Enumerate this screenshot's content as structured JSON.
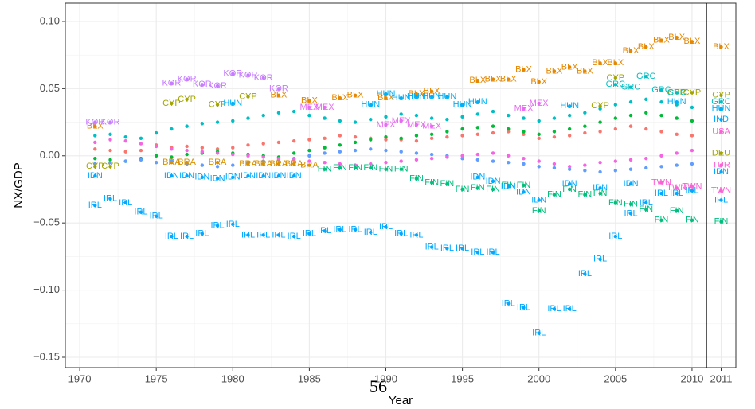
{
  "chart_data": [
    {
      "type": "scatter",
      "x_label": "Year",
      "y_label": "NX/GDP",
      "xlim": [
        1969.06,
        2010.94
      ],
      "xticks": [
        1970,
        1975,
        1980,
        1985,
        1990,
        1995,
        2000,
        2005,
        2010
      ],
      "ylim": [
        -0.1577,
        0.1136
      ],
      "yticks": [
        {
          "value": -0.15,
          "label": "−0.15"
        },
        {
          "value": -0.1,
          "label": "−0.10"
        },
        {
          "value": -0.05,
          "label": "−0.05"
        },
        {
          "value": 0,
          "label": "0.00"
        },
        {
          "value": 0.05,
          "label": "0.05"
        },
        {
          "value": 0.1,
          "label": "0.10"
        }
      ],
      "grid": true,
      "series": [
        {
          "color": "#f8766d",
          "x": [
            1971,
            1972,
            1973,
            1974,
            1975,
            1976,
            1977,
            1978,
            1979,
            1980,
            1981,
            1982,
            1983,
            1984,
            1985,
            1986,
            1987,
            1988,
            1989,
            1990,
            1991,
            1992,
            1993,
            1994,
            1995,
            1996,
            1997,
            1998,
            1999,
            2000,
            2001,
            2002,
            2003,
            2004,
            2005,
            2006,
            2007,
            2008,
            2009,
            2010
          ],
          "values": [
            0.005,
            0.004,
            0.003,
            0.004,
            0.008,
            0.006,
            0.007,
            0.006,
            0.005,
            0.006,
            0.008,
            0.009,
            0.01,
            0.011,
            0.012,
            0.013,
            0.015,
            0.014,
            0.013,
            0.012,
            0.012,
            0.011,
            0.013,
            0.014,
            0.015,
            0.016,
            0.017,
            0.018,
            0.016,
            0.013,
            0.014,
            0.015,
            0.017,
            0.018,
            0.02,
            0.022,
            0.02,
            0.018,
            0.016,
            0.015
          ]
        },
        {
          "color": "#00ba38",
          "x": [
            1971,
            1972,
            1973,
            1974,
            1975,
            1976,
            1977,
            1978,
            1979,
            1980,
            1981,
            1982,
            1983,
            1984,
            1985,
            1986,
            1987,
            1988,
            1989,
            1990,
            1991,
            1992,
            1993,
            1994,
            1995,
            1996,
            1997,
            1998,
            1999,
            2000,
            2001,
            2002,
            2003,
            2004,
            2005,
            2006,
            2007,
            2008,
            2009,
            2010
          ],
          "values": [
            -0.002,
            -0.003,
            -0.004,
            -0.002,
            0,
            -0.001,
            0.001,
            0.002,
            0.003,
            0.002,
            0.001,
            0,
            -0.001,
            0.002,
            0.004,
            0.006,
            0.008,
            0.01,
            0.012,
            0.014,
            0.013,
            0.015,
            0.016,
            0.018,
            0.02,
            0.021,
            0.022,
            0.02,
            0.018,
            0.016,
            0.018,
            0.02,
            0.022,
            0.025,
            0.028,
            0.03,
            0.032,
            0.03,
            0.028,
            0.026
          ]
        },
        {
          "color": "#619cff",
          "x": [
            1971,
            1972,
            1973,
            1974,
            1975,
            1976,
            1977,
            1978,
            1979,
            1980,
            1981,
            1982,
            1983,
            1984,
            1985,
            1986,
            1987,
            1988,
            1989,
            1990,
            1991,
            1992,
            1993,
            1994,
            1995,
            1996,
            1997,
            1998,
            1999,
            2000,
            2001,
            2002,
            2003,
            2004,
            2005,
            2006,
            2007,
            2008,
            2009,
            2010
          ],
          "values": [
            -0.006,
            -0.005,
            -0.004,
            -0.003,
            -0.005,
            -0.004,
            -0.006,
            -0.007,
            -0.008,
            -0.007,
            -0.005,
            -0.004,
            -0.003,
            -0.002,
            0,
            0.002,
            0.003,
            0.004,
            0.005,
            0.004,
            0.003,
            0.002,
            0.001,
            0,
            -0.002,
            -0.003,
            -0.004,
            -0.005,
            -0.006,
            -0.008,
            -0.009,
            -0.01,
            -0.011,
            -0.012,
            -0.011,
            -0.01,
            -0.009,
            -0.008,
            -0.007,
            -0.006
          ]
        },
        {
          "color": "#f564e3",
          "x": [
            1971,
            1972,
            1973,
            1974,
            1975,
            1976,
            1977,
            1978,
            1979,
            1980,
            1981,
            1982,
            1983,
            1984,
            1985,
            1986,
            1987,
            1988,
            1989,
            1990,
            1991,
            1992,
            1993,
            1994,
            1995,
            1996,
            1997,
            1998,
            1999,
            2000,
            2001,
            2002,
            2003,
            2004,
            2005,
            2006,
            2007,
            2008,
            2009,
            2010
          ],
          "values": [
            0.01,
            0.012,
            0.011,
            0.009,
            0.007,
            0.005,
            0.004,
            0.003,
            0.002,
            0.001,
            0,
            -0.001,
            -0.002,
            -0.003,
            -0.004,
            -0.005,
            -0.006,
            -0.007,
            -0.006,
            -0.005,
            -0.004,
            -0.003,
            -0.002,
            -0.001,
            0,
            0.001,
            0.002,
            0,
            -0.002,
            -0.004,
            -0.006,
            -0.008,
            -0.007,
            -0.005,
            -0.004,
            -0.003,
            -0.002,
            0,
            0.002,
            0.004
          ]
        },
        {
          "color": "#00bfc4",
          "x": [
            1971,
            1972,
            1973,
            1974,
            1975,
            1976,
            1977,
            1978,
            1979,
            1980,
            1981,
            1982,
            1983,
            1984,
            1985,
            1986,
            1987,
            1988,
            1989,
            1990,
            1991,
            1992,
            1993,
            1994,
            1995,
            1996,
            1997,
            1998,
            1999,
            2000,
            2001,
            2002,
            2003,
            2004,
            2005,
            2006,
            2007,
            2008,
            2009,
            2010
          ],
          "values": [
            0.015,
            0.016,
            0.014,
            0.013,
            0.017,
            0.02,
            0.022,
            0.024,
            0.025,
            0.026,
            0.028,
            0.03,
            0.032,
            0.033,
            0.03,
            0.028,
            0.026,
            0.025,
            0.027,
            0.029,
            0.031,
            0.03,
            0.028,
            0.027,
            0.029,
            0.031,
            0.033,
            0.03,
            0.028,
            0.026,
            0.028,
            0.03,
            0.032,
            0.035,
            0.038,
            0.04,
            0.042,
            0.04,
            0.038,
            0.036
          ]
        },
        {
          "name": "IRL",
          "color": "#00a9ff",
          "x": [
            1971,
            1972,
            1973,
            1974,
            1975,
            1976,
            1977,
            1978,
            1979,
            1980,
            1981,
            1982,
            1983,
            1984,
            1985,
            1986,
            1987,
            1988,
            1989,
            1990,
            1991,
            1992,
            1993,
            1994,
            1995,
            1996,
            1997,
            1998,
            1999,
            2000,
            2001,
            2002,
            2003,
            2004,
            2005,
            2006,
            2007,
            2008,
            2009,
            2010
          ],
          "values": [
            -0.037,
            -0.032,
            -0.035,
            -0.042,
            -0.045,
            -0.06,
            -0.06,
            -0.058,
            -0.052,
            -0.051,
            -0.059,
            -0.059,
            -0.059,
            -0.06,
            -0.058,
            -0.056,
            -0.055,
            -0.055,
            -0.057,
            -0.053,
            -0.058,
            -0.059,
            -0.068,
            -0.069,
            -0.069,
            -0.072,
            -0.072,
            -0.11,
            -0.113,
            -0.132,
            -0.114,
            -0.114,
            -0.088,
            -0.077,
            -0.06,
            -0.043,
            -0.035,
            -0.028,
            -0.028,
            -0.026
          ]
        },
        {
          "name": "BLX",
          "color": "#e58700",
          "x": [
            1971,
            1983,
            1985,
            1987,
            1988,
            1990,
            1992,
            1993,
            1996,
            1997,
            1998,
            1999,
            2000,
            2001,
            2002,
            2003,
            2004,
            2005,
            2006,
            2007,
            2008,
            2009,
            2010
          ],
          "values": [
            0.022,
            0.045,
            0.041,
            0.043,
            0.045,
            0.043,
            0.046,
            0.048,
            0.056,
            0.057,
            0.057,
            0.064,
            0.055,
            0.063,
            0.066,
            0.063,
            0.069,
            0.069,
            0.078,
            0.081,
            0.086,
            0.088,
            0.085
          ]
        },
        {
          "name": "KOR",
          "color": "#c77cff",
          "x": [
            1971,
            1972,
            1976,
            1977,
            1978,
            1979,
            1980,
            1981,
            1982,
            1983
          ],
          "values": [
            0.025,
            0.025,
            0.054,
            0.057,
            0.053,
            0.052,
            0.061,
            0.06,
            0.058,
            0.05
          ]
        },
        {
          "name": "FIN",
          "color": "#00bf7d",
          "x": [
            1986,
            1987,
            1988,
            1989,
            1990,
            1991,
            1992,
            1993,
            1994,
            1995,
            1996,
            1997,
            1998,
            1999,
            2000,
            2001,
            2002,
            2003,
            2004,
            2005,
            2006,
            2007,
            2008,
            2009,
            2010
          ],
          "values": [
            -0.01,
            -0.009,
            -0.009,
            -0.009,
            -0.01,
            -0.01,
            -0.017,
            -0.02,
            -0.021,
            -0.025,
            -0.024,
            -0.025,
            -0.022,
            -0.022,
            -0.041,
            -0.029,
            -0.025,
            -0.029,
            -0.028,
            -0.035,
            -0.036,
            -0.04,
            -0.048,
            -0.041,
            -0.048
          ]
        },
        {
          "name": "IDN",
          "color": "#00a9ff",
          "x": [
            1971,
            1976,
            1977,
            1978,
            1979,
            1980,
            1981,
            1982,
            1983,
            1984,
            1996,
            1997,
            1998,
            1999,
            2000,
            2002,
            2004,
            2006
          ],
          "values": [
            -0.015,
            -0.015,
            -0.015,
            -0.016,
            -0.017,
            -0.016,
            -0.015,
            -0.015,
            -0.015,
            -0.015,
            -0.016,
            -0.019,
            -0.023,
            -0.027,
            -0.033,
            -0.021,
            -0.024,
            -0.021
          ]
        },
        {
          "name": "CYP",
          "color": "#a3a500",
          "x": [
            1971,
            1972,
            1976,
            1977,
            1979,
            1981,
            2004,
            2005,
            2009,
            2010
          ],
          "values": [
            -0.008,
            -0.008,
            0.039,
            0.042,
            0.038,
            0.044,
            0.037,
            0.058,
            0.047,
            0.047
          ]
        },
        {
          "name": "GRC",
          "color": "#00bfc4",
          "x": [
            2005,
            2006,
            2007,
            2008,
            2009
          ],
          "values": [
            0.053,
            0.051,
            0.059,
            0.049,
            0.047
          ]
        },
        {
          "name": "HUN",
          "color": "#00b0f6",
          "x": [
            1980,
            1989,
            1990,
            1991,
            1992,
            1993,
            1994,
            1995,
            1996,
            2002,
            2009
          ],
          "values": [
            0.039,
            0.038,
            0.046,
            0.043,
            0.044,
            0.044,
            0.044,
            0.038,
            0.04,
            0.037,
            0.04
          ]
        },
        {
          "name": "MEX",
          "color": "#e76bf3",
          "x": [
            1985,
            1986,
            1990,
            1991,
            1992,
            1993,
            1999,
            2000
          ],
          "values": [
            0.036,
            0.036,
            0.023,
            0.026,
            0.023,
            0.022,
            0.035,
            0.039
          ]
        },
        {
          "name": "BRA",
          "color": "#d89000",
          "x": [
            1976,
            1977,
            1979,
            1981,
            1982,
            1983,
            1984,
            1985
          ],
          "values": [
            -0.005,
            -0.005,
            -0.005,
            -0.006,
            -0.006,
            -0.006,
            -0.006,
            -0.007
          ]
        },
        {
          "name": "TWN",
          "color": "#fb61d7",
          "x": [
            2008,
            2009,
            2010
          ],
          "values": [
            -0.02,
            -0.024,
            -0.023
          ]
        }
      ]
    },
    {
      "type": "scatter",
      "xlim": [
        2010.5,
        2011.5
      ],
      "xticks": [
        2011
      ],
      "ylim": [
        -0.1577,
        0.1136
      ],
      "yticks": [
        -0.15,
        -0.1,
        -0.05,
        0,
        0.05,
        0.1
      ],
      "grid": true,
      "series": [
        {
          "name": "BLX",
          "color": "#e58700",
          "x": [
            2011
          ],
          "values": [
            0.081
          ]
        },
        {
          "name": "CYP",
          "color": "#a3a500",
          "x": [
            2011
          ],
          "values": [
            0.045
          ]
        },
        {
          "name": "GRC",
          "color": "#00bfc4",
          "x": [
            2011
          ],
          "values": [
            0.04
          ]
        },
        {
          "name": "HUN",
          "color": "#00b0f6",
          "x": [
            2011
          ],
          "values": [
            0.035
          ]
        },
        {
          "name": "IND",
          "color": "#00a9ff",
          "x": [
            2011
          ],
          "values": [
            0.027
          ]
        },
        {
          "name": "USA",
          "color": "#fb61d7",
          "x": [
            2011
          ],
          "values": [
            0.018
          ]
        },
        {
          "name": "DEU",
          "color": "#a3a500",
          "x": [
            2011
          ],
          "values": [
            0.002
          ]
        },
        {
          "name": "TUR",
          "color": "#fb61d7",
          "x": [
            2011
          ],
          "values": [
            -0.007
          ]
        },
        {
          "name": "IDN",
          "color": "#00a9ff",
          "x": [
            2011
          ],
          "values": [
            -0.012
          ]
        },
        {
          "name": "TWN",
          "color": "#fb61d7",
          "x": [
            2011
          ],
          "values": [
            -0.026
          ]
        },
        {
          "name": "IRL",
          "color": "#00a9ff",
          "x": [
            2011
          ],
          "values": [
            -0.033
          ]
        },
        {
          "name": "FIN",
          "color": "#00bf7d",
          "x": [
            2011
          ],
          "values": [
            -0.049
          ]
        }
      ]
    }
  ],
  "page_mark": "56"
}
